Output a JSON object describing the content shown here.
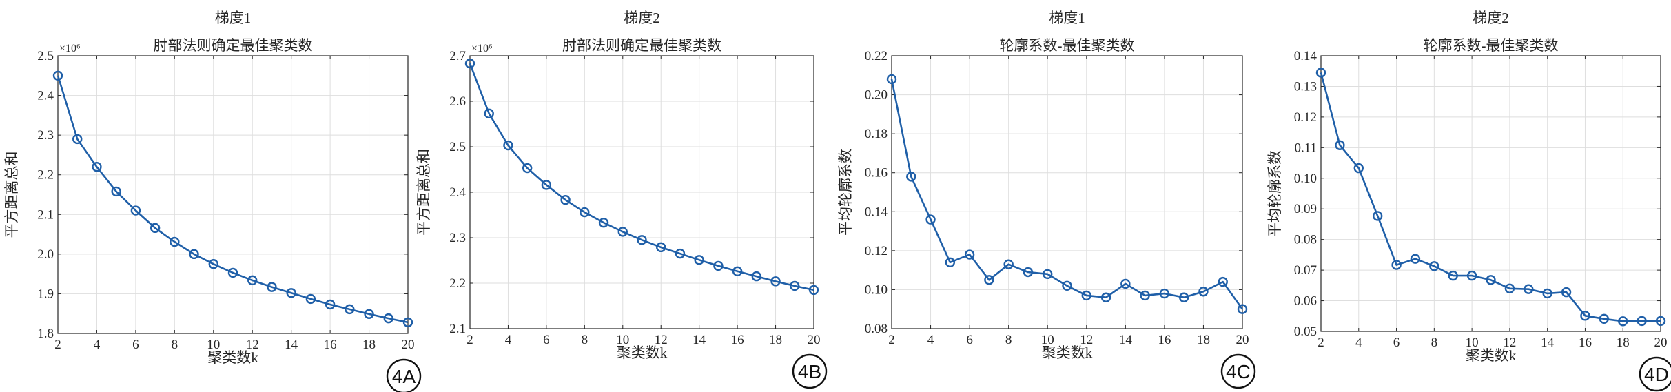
{
  "chart_data": [
    {
      "type": "line",
      "panel_label": "4A",
      "suptitle": "梯度1",
      "title": "肘部法则确定最佳聚类数",
      "xlabel": "聚类数k",
      "ylabel": "平方距离总和",
      "exponent_label": "×10⁶",
      "xlim": [
        2,
        20
      ],
      "ylim": [
        1.8,
        2.5
      ],
      "xticks": [
        2,
        4,
        6,
        8,
        10,
        12,
        14,
        16,
        18,
        20
      ],
      "xtick_labels": [
        "2",
        "4",
        "6",
        "8",
        "10",
        "12",
        "14",
        "16",
        "18",
        "20"
      ],
      "yticks": [
        1.8,
        1.9,
        2.0,
        2.1,
        2.2,
        2.3,
        2.4,
        2.5
      ],
      "ytick_labels": [
        "1.8",
        "1.9",
        "2.0",
        "2.1",
        "2.2",
        "2.3",
        "2.4",
        "2.5"
      ],
      "grid": true,
      "color": "#1f5fa8",
      "x": [
        2,
        3,
        4,
        5,
        6,
        7,
        8,
        9,
        10,
        11,
        12,
        13,
        14,
        15,
        16,
        17,
        18,
        19,
        20
      ],
      "y": [
        2.45,
        2.29,
        2.22,
        2.158,
        2.11,
        2.066,
        2.031,
        2.0,
        1.975,
        1.953,
        1.934,
        1.917,
        1.902,
        1.887,
        1.873,
        1.861,
        1.849,
        1.838,
        1.828
      ]
    },
    {
      "type": "line",
      "panel_label": "4B",
      "suptitle": "梯度2",
      "title": "肘部法则确定最佳聚类数",
      "xlabel": "聚类数k",
      "ylabel": "平方距离总和",
      "exponent_label": "×10⁶",
      "xlim": [
        2,
        20
      ],
      "ylim": [
        2.1,
        2.7
      ],
      "xticks": [
        2,
        4,
        6,
        8,
        10,
        12,
        14,
        16,
        18,
        20
      ],
      "xtick_labels": [
        "2",
        "4",
        "6",
        "8",
        "10",
        "12",
        "14",
        "16",
        "18",
        "20"
      ],
      "yticks": [
        2.1,
        2.2,
        2.3,
        2.4,
        2.5,
        2.6,
        2.7
      ],
      "ytick_labels": [
        "2.1",
        "2.2",
        "2.3",
        "2.4",
        "2.5",
        "2.6",
        "2.7"
      ],
      "grid": true,
      "color": "#1f5fa8",
      "x": [
        2,
        3,
        4,
        5,
        6,
        7,
        8,
        9,
        10,
        11,
        12,
        13,
        14,
        15,
        16,
        17,
        18,
        19,
        20
      ],
      "y": [
        2.683,
        2.573,
        2.503,
        2.453,
        2.416,
        2.383,
        2.356,
        2.333,
        2.313,
        2.295,
        2.279,
        2.265,
        2.251,
        2.238,
        2.226,
        2.215,
        2.204,
        2.194,
        2.185
      ]
    },
    {
      "type": "line",
      "panel_label": "4C",
      "suptitle": "梯度1",
      "title": "轮廓系数-最佳聚类数",
      "xlabel": "聚类数k",
      "ylabel": "平均轮廓系数",
      "xlim": [
        2,
        20
      ],
      "ylim": [
        0.08,
        0.22
      ],
      "xticks": [
        2,
        4,
        6,
        8,
        10,
        12,
        14,
        16,
        18,
        20
      ],
      "xtick_labels": [
        "2",
        "4",
        "6",
        "8",
        "10",
        "12",
        "14",
        "16",
        "18",
        "20"
      ],
      "yticks": [
        0.08,
        0.1,
        0.12,
        0.14,
        0.16,
        0.18,
        0.2,
        0.22
      ],
      "ytick_labels": [
        "0.08",
        "0.10",
        "0.12",
        "0.14",
        "0.16",
        "0.18",
        "0.20",
        "0.22"
      ],
      "grid": true,
      "color": "#1f5fa8",
      "x": [
        2,
        3,
        4,
        5,
        6,
        7,
        8,
        9,
        10,
        11,
        12,
        13,
        14,
        15,
        16,
        17,
        18,
        19,
        20
      ],
      "y": [
        0.208,
        0.158,
        0.136,
        0.114,
        0.118,
        0.105,
        0.113,
        0.109,
        0.108,
        0.102,
        0.097,
        0.096,
        0.103,
        0.097,
        0.098,
        0.096,
        0.099,
        0.104,
        0.09
      ]
    },
    {
      "type": "line",
      "panel_label": "4D",
      "suptitle": "梯度2",
      "title": "轮廓系数-最佳聚类数",
      "xlabel": "聚类数k",
      "ylabel": "平均轮廓系数",
      "xlim": [
        2,
        20
      ],
      "ylim": [
        0.05,
        0.14
      ],
      "xticks": [
        2,
        4,
        6,
        8,
        10,
        12,
        14,
        16,
        18,
        20
      ],
      "xtick_labels": [
        "2",
        "4",
        "6",
        "8",
        "10",
        "12",
        "14",
        "16",
        "18",
        "20"
      ],
      "yticks": [
        0.05,
        0.06,
        0.07,
        0.08,
        0.09,
        0.1,
        0.11,
        0.12,
        0.13,
        0.14
      ],
      "ytick_labels": [
        "0.05",
        "0.06",
        "0.07",
        "0.08",
        "0.09",
        "0.10",
        "0.11",
        "0.12",
        "0.13",
        "0.14"
      ],
      "grid": true,
      "color": "#1f5fa8",
      "x": [
        2,
        3,
        4,
        5,
        6,
        7,
        8,
        9,
        10,
        11,
        12,
        13,
        14,
        15,
        16,
        17,
        18,
        19,
        20
      ],
      "y": [
        0.1345,
        0.1108,
        0.1033,
        0.0877,
        0.0717,
        0.0737,
        0.0713,
        0.0682,
        0.0682,
        0.0668,
        0.064,
        0.0638,
        0.0624,
        0.0628,
        0.0551,
        0.0541,
        0.0533,
        0.0534,
        0.0534
      ]
    }
  ]
}
